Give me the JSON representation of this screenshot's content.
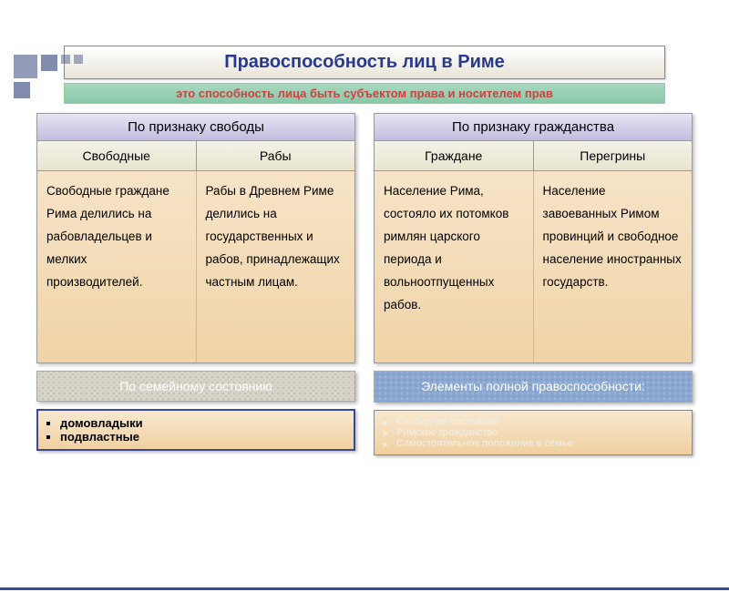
{
  "title": "Правоспособность лиц в Риме",
  "subtitle": "это способность лица быть субъектом права и носителем прав",
  "tables": [
    {
      "header": "По признаку свободы",
      "cols": [
        "Свободные",
        "Рабы"
      ],
      "cells": [
        "Свободные граждане Рима делились на рабовладельцев и мелких производителей.",
        "Рабы в Древнем Риме делились на государственных и рабов, принадлежащих частным лицам."
      ]
    },
    {
      "header": "По признаку гражданства",
      "cols": [
        "Граждане",
        "Перегрины"
      ],
      "cells": [
        "Население Рима, состояло их потомков римлян царского периода и вольноотпущенных рабов.",
        "Население завоеванных Римом провинций и свободное население иностранных государств."
      ]
    }
  ],
  "footer": {
    "left": {
      "label": "По семейному состоянию",
      "items": [
        "домовладыки",
        "подвластные"
      ]
    },
    "right": {
      "label": "Элементы полной правоспособности:",
      "items": [
        "Свободное состояние",
        "Римское гражданство",
        "Самостоятельное положение в семье"
      ]
    }
  },
  "colors": {
    "title_text": "#2a3a8a",
    "accent": "#3a4a9a",
    "subtitle_text": "#d04040"
  }
}
